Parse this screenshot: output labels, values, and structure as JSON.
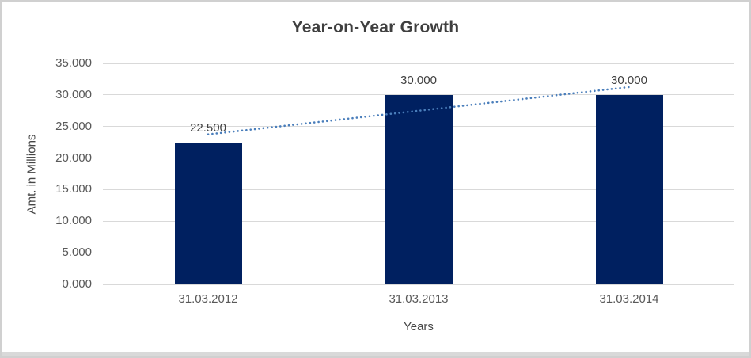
{
  "chart_data": {
    "type": "bar",
    "title": "Year-on-Year Growth",
    "xlabel": "Years",
    "ylabel": "Amt. in Millions",
    "categories": [
      "31.03.2012",
      "31.03.2013",
      "31.03.2014"
    ],
    "values": [
      22.5,
      30,
      30
    ],
    "data_labels": [
      "22.500",
      "30.000",
      "30.000"
    ],
    "ylim": [
      0,
      35
    ],
    "yticks": [
      {
        "value": 35,
        "label": "35.000"
      },
      {
        "value": 30,
        "label": "30.000"
      },
      {
        "value": 25,
        "label": "25.000"
      },
      {
        "value": 20,
        "label": "20.000"
      },
      {
        "value": 15,
        "label": "15.000"
      },
      {
        "value": 10,
        "label": "10.000"
      },
      {
        "value": 5,
        "label": "5.000"
      },
      {
        "value": 0,
        "label": "0.000"
      }
    ],
    "grid": true,
    "legend": false,
    "trendline": {
      "type": "linear",
      "style": "dotted",
      "fitted_values": [
        23.75,
        27.5,
        31.25
      ],
      "color": "#4a7ebb"
    },
    "colors": {
      "bar": "#002060",
      "gridline": "#d9d9d9",
      "title_text": "#3f3f3f",
      "tick_text": "#595959",
      "label_text": "#404040",
      "axis_title_text": "#454545",
      "border": "#d0d0d0",
      "bottom_strip": "#d9d9d9",
      "background": "#ffffff"
    }
  }
}
